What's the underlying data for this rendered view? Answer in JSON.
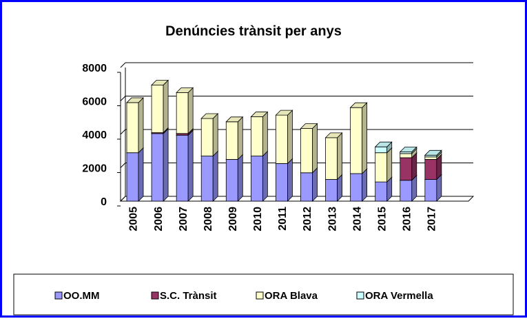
{
  "chart_data": {
    "type": "bar",
    "stacked": true,
    "title": "Denúncies trànsit per anys",
    "categories": [
      "2005",
      "2006",
      "2007",
      "2008",
      "2009",
      "2010",
      "2011",
      "2012",
      "2013",
      "2014",
      "2015",
      "2016",
      "2017"
    ],
    "series": [
      {
        "name": "OO.MM",
        "color": "#9999ff",
        "values": [
          2900,
          4050,
          3950,
          2700,
          2500,
          2700,
          2250,
          1700,
          1300,
          1650,
          1150,
          1250,
          1300
        ]
      },
      {
        "name": "S.C. Trànsit",
        "color": "#993366",
        "values": [
          0,
          50,
          100,
          0,
          0,
          0,
          0,
          0,
          0,
          0,
          0,
          1350,
          1200
        ]
      },
      {
        "name": "ORA Blava",
        "color": "#ffffcc",
        "values": [
          3000,
          2850,
          2450,
          2250,
          2250,
          2350,
          2900,
          2650,
          2500,
          3950,
          1750,
          250,
          150
        ]
      },
      {
        "name": "ORA Vermella",
        "color": "#ccffff",
        "values": [
          0,
          0,
          0,
          0,
          0,
          0,
          0,
          0,
          0,
          0,
          350,
          100,
          100
        ]
      }
    ],
    "ylim": [
      0,
      8000
    ],
    "yticks": [
      0,
      2000,
      4000,
      6000,
      8000
    ],
    "grid": true,
    "legend": "bottom"
  }
}
